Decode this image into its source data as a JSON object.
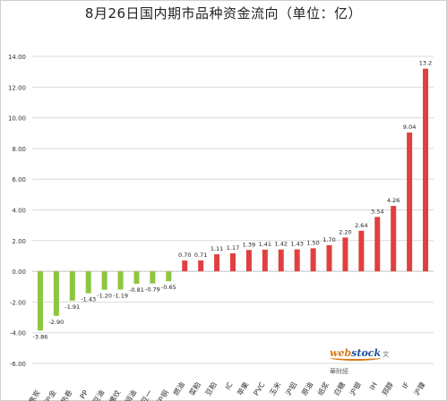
{
  "chart_data": {
    "type": "bar",
    "title": "8月26日国内期市品种资金流向（单位：亿）",
    "xlabel": "",
    "ylabel": "",
    "categories": [
      "焦炭",
      "沪金",
      "热卷",
      "PP",
      "豆油",
      "螺纹",
      "棕榈油",
      "豆一",
      "沪铜",
      "燃油",
      "菜粕",
      "豆粕",
      "IC",
      "苹果",
      "PVC",
      "玉米",
      "沪铝",
      "原油",
      "纸浆",
      "白糖",
      "沪银",
      "IH",
      "郑醇",
      "IF",
      "沪镍"
    ],
    "values": [
      -3.86,
      -2.9,
      -1.91,
      -1.43,
      -1.2,
      -1.19,
      -0.81,
      -0.79,
      -0.65,
      0.7,
      0.71,
      1.11,
      1.17,
      1.39,
      1.41,
      1.42,
      1.43,
      1.5,
      1.7,
      2.2,
      2.64,
      3.54,
      4.26,
      9.04,
      13.2
    ],
    "value_labels": [
      "-3.86",
      "-2.90",
      "-1.91",
      "-1.43",
      "-1.20",
      "-1.19",
      "-0.81",
      "-0.79",
      "-0.65",
      "0.70",
      "0.71",
      "1.11",
      "1.17",
      "1.39",
      "1.41",
      "1.42",
      "1.43",
      "1.50",
      "1.70",
      "2.20",
      "2.64",
      "3.54",
      "4.26",
      "9.04",
      "13.2"
    ],
    "ylim": [
      -6,
      14
    ],
    "yticks": [
      14,
      12,
      10,
      8,
      6,
      4,
      2,
      0,
      -2,
      -4,
      -6
    ],
    "ytick_labels": [
      "14.00",
      "12.00",
      "10.00",
      "8.00",
      "6.00",
      "4.00",
      "2.00",
      "0.00",
      "-2.00",
      "-4.00",
      "-6.00"
    ],
    "grid": true,
    "colors": {
      "positive": "#e04040",
      "negative": "#8dc63f",
      "grid": "#d9d9d9",
      "text": "#333333"
    }
  },
  "watermark": {
    "part1": "web",
    "part2": "stock",
    "subtitle": "文華財經"
  }
}
